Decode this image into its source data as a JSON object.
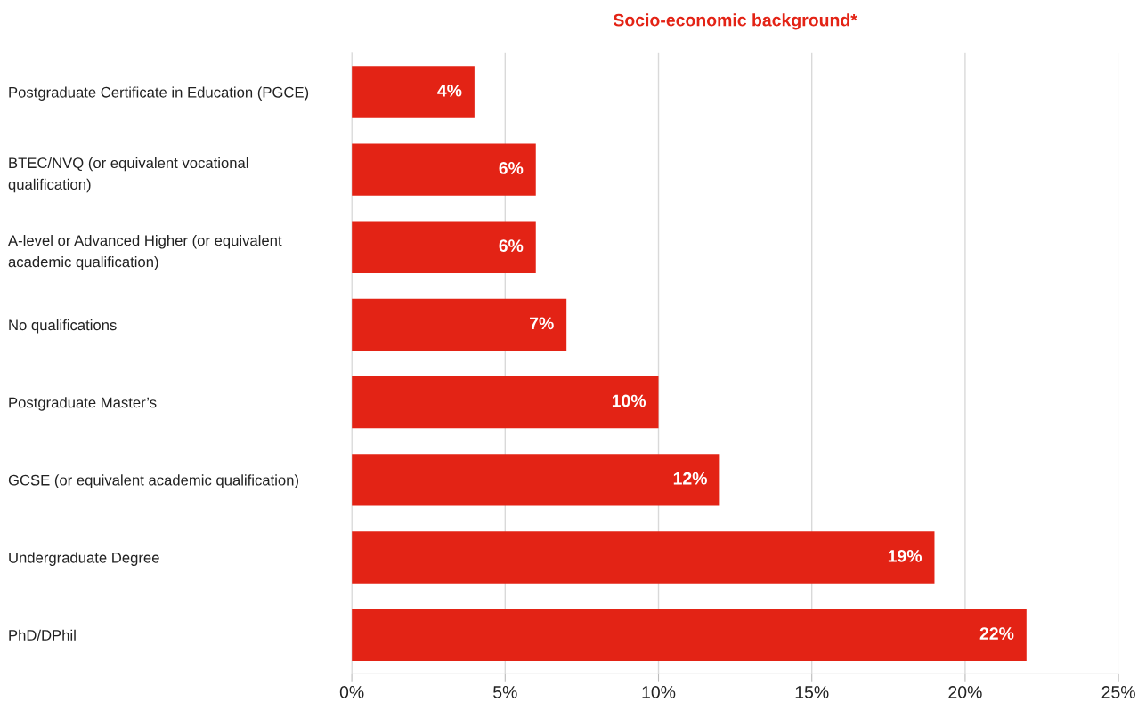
{
  "chart_data": {
    "type": "bar",
    "orientation": "horizontal",
    "title": "Socio-economic background*",
    "categories": [
      "Postgraduate Certificate in Education (PGCE)",
      "BTEC/NVQ (or equivalent vocational\nqualification)",
      "A-level or Advanced Higher (or equivalent\nacademic qualification)",
      "No qualifications",
      "Postgraduate Master’s",
      "GCSE (or equivalent academic qualification)",
      "Undergraduate Degree",
      "PhD/DPhil"
    ],
    "values": [
      4,
      6,
      6,
      7,
      10,
      12,
      19,
      22
    ],
    "value_labels": [
      "4%",
      "6%",
      "6%",
      "7%",
      "10%",
      "12%",
      "19%",
      "22%"
    ],
    "color": "#e32315",
    "xlim": [
      0,
      25
    ],
    "xticks": [
      {
        "value": 0,
        "label": "0%"
      },
      {
        "value": 5,
        "label": "5%"
      },
      {
        "value": 10,
        "label": "10%"
      },
      {
        "value": 15,
        "label": "15%"
      },
      {
        "value": 20,
        "label": "20%"
      },
      {
        "value": 25,
        "label": "25%"
      }
    ],
    "grid": "x"
  }
}
